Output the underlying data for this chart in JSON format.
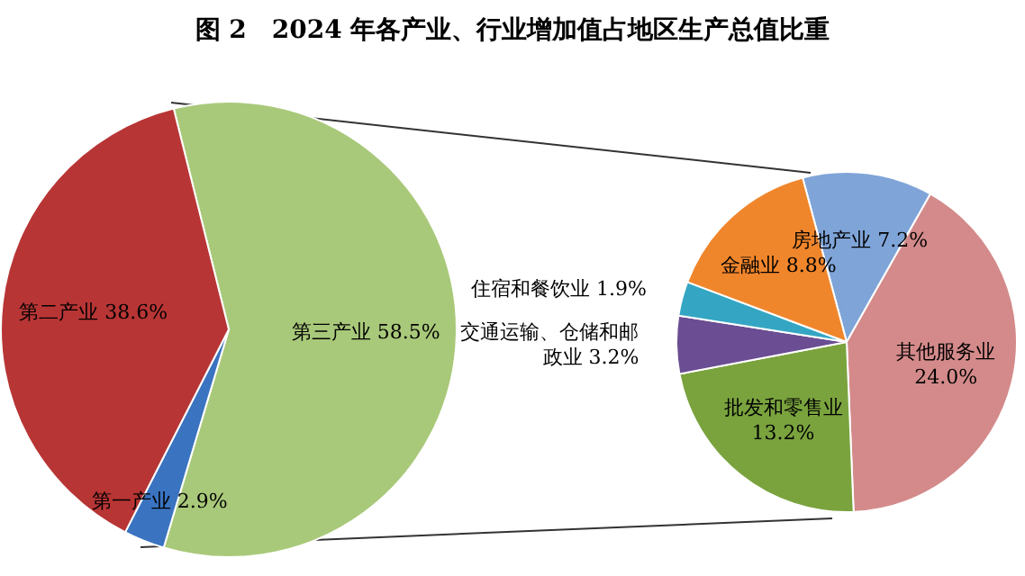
{
  "chart_data": [
    {
      "type": "pie",
      "title": "图 2　2024 年各产业、行业增加值占地区生产总值比重",
      "categories": [
        "第三产业",
        "第一产业",
        "第二产业"
      ],
      "values": [
        58.5,
        2.9,
        38.6
      ],
      "value_labels": [
        "58.5%",
        "2.9%",
        "38.6%"
      ],
      "colors": [
        "#a9c97a",
        "#3a73c0",
        "#b83535"
      ]
    },
    {
      "type": "pie",
      "categories": [
        "房地产业",
        "其他服务业",
        "批发和零售业",
        "交通运输、仓储和邮政业",
        "住宿和餐饮业",
        "金融业"
      ],
      "values": [
        7.2,
        24.0,
        13.2,
        3.2,
        1.9,
        8.8
      ],
      "value_labels": [
        "7.2%",
        "24.0%",
        "13.2%",
        "3.2%",
        "1.9%",
        "8.8%"
      ],
      "colors": [
        "#7fa4d8",
        "#d48a8a",
        "#7aa33e",
        "#6a4d92",
        "#34a6c3",
        "#f0862c"
      ]
    }
  ]
}
